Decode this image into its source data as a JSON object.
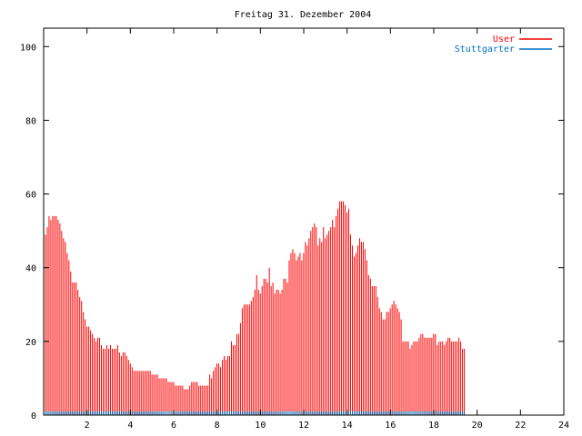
{
  "chart_data": {
    "type": "bar",
    "title": "Freitag 31. Dezember 2004",
    "xlabel": "",
    "ylabel": "",
    "xlim": [
      0,
      24
    ],
    "ylim": [
      0,
      105
    ],
    "x_ticks": [
      2,
      4,
      6,
      8,
      10,
      12,
      14,
      16,
      18,
      20,
      22,
      24
    ],
    "y_ticks": [
      0,
      20,
      40,
      60,
      80,
      100
    ],
    "grid": false,
    "legend_position": "top-right",
    "colors": {
      "User": "#ff0000",
      "Stuttgarter": "#0070c0",
      "axis": "#000000"
    },
    "x_step_hours": 0.0833,
    "series": [
      {
        "name": "User",
        "style": "impulses",
        "values": [
          50,
          49,
          51,
          54,
          53,
          54,
          54,
          54,
          53,
          52,
          50,
          48,
          47,
          44,
          42,
          39,
          36,
          36,
          36,
          34,
          32,
          31,
          28,
          26,
          24,
          24,
          23,
          22,
          21,
          20,
          21,
          21,
          19,
          18,
          18,
          19,
          18,
          19,
          18,
          18,
          18,
          19,
          17,
          16,
          17,
          17,
          16,
          15,
          14,
          13,
          12,
          12,
          12,
          12,
          12,
          12,
          12,
          12,
          12,
          12,
          11,
          11,
          11,
          11,
          10,
          10,
          10,
          10,
          10,
          9,
          9,
          9,
          9,
          8,
          8,
          8,
          8,
          8,
          7,
          7,
          7,
          8,
          9,
          9,
          9,
          9,
          8,
          8,
          8,
          8,
          8,
          8,
          11,
          10,
          12,
          13,
          14,
          14,
          13,
          15,
          16,
          15,
          16,
          16,
          20,
          19,
          19,
          22,
          22,
          25,
          29,
          30,
          30,
          30,
          30,
          31,
          32,
          34,
          38,
          34,
          33,
          35,
          37,
          37,
          36,
          40,
          35,
          36,
          33,
          34,
          34,
          33,
          34,
          37,
          37,
          36,
          42,
          44,
          45,
          44,
          42,
          43,
          44,
          42,
          44,
          47,
          46,
          48,
          50,
          51,
          52,
          51,
          46,
          48,
          47,
          51,
          48,
          49,
          50,
          51,
          53,
          51,
          54,
          56,
          58,
          58,
          58,
          57,
          55,
          56,
          49,
          46,
          43,
          44,
          46,
          48,
          47,
          47,
          45,
          42,
          38,
          37,
          35,
          35,
          35,
          32,
          29,
          28,
          26,
          26,
          28,
          28,
          29,
          30,
          31,
          30,
          29,
          28,
          26,
          20,
          20,
          20,
          20,
          18,
          19,
          20,
          20,
          20,
          21,
          22,
          22,
          21,
          21,
          21,
          21,
          21,
          22,
          22,
          19,
          20,
          20,
          20,
          19,
          20,
          21,
          21,
          20,
          20,
          20,
          20,
          21,
          20,
          18,
          18
        ]
      },
      {
        "name": "Stuttgarter",
        "style": "impulses",
        "values": [
          1,
          1,
          1,
          1,
          1,
          1,
          1,
          1,
          1,
          1,
          1,
          1,
          1,
          1,
          1,
          1,
          1,
          1,
          1,
          1,
          1,
          1,
          1,
          1,
          1,
          1,
          1,
          1,
          1,
          1,
          1,
          1,
          1,
          1,
          1,
          1,
          1,
          1,
          1,
          1,
          1,
          1,
          1,
          1,
          1,
          1,
          1,
          1,
          1,
          1,
          1,
          1,
          1,
          1,
          1,
          1,
          1,
          1,
          1,
          1,
          1,
          1,
          1,
          1,
          1,
          1,
          1,
          1,
          1,
          1,
          1,
          1,
          1,
          1,
          1,
          1,
          1,
          1,
          1,
          1,
          1,
          1,
          1,
          1,
          1,
          1,
          1,
          1,
          1,
          1,
          1,
          1,
          1,
          1,
          1,
          1,
          1,
          1,
          1,
          1,
          1,
          1,
          1,
          1,
          1,
          1,
          1,
          1,
          1,
          1,
          1,
          1,
          1,
          1,
          1,
          1,
          1,
          1,
          1,
          1,
          1,
          1,
          1,
          1,
          1,
          1,
          1,
          1,
          1,
          1,
          1,
          1,
          1,
          1,
          1,
          1,
          1,
          1,
          1,
          1,
          1,
          1,
          1,
          1,
          1,
          1,
          1,
          1,
          1,
          1,
          1,
          1,
          1,
          1,
          1,
          1,
          1,
          1,
          1,
          1,
          1,
          1,
          1,
          1,
          1,
          1,
          1,
          1,
          1,
          1,
          1,
          1,
          1,
          1,
          1,
          1,
          1,
          1,
          1,
          1,
          1,
          1,
          1,
          1,
          1,
          1,
          1,
          1,
          1,
          1,
          1,
          1,
          1,
          1,
          1,
          1,
          1,
          1,
          1,
          1,
          1,
          1,
          1,
          1,
          1,
          1,
          1,
          1,
          1,
          1,
          1,
          1,
          1,
          1,
          1,
          1,
          1,
          1,
          1,
          1,
          1,
          1,
          1,
          1,
          1,
          1,
          1,
          1,
          1,
          1,
          1,
          1,
          1,
          1
        ]
      }
    ]
  }
}
